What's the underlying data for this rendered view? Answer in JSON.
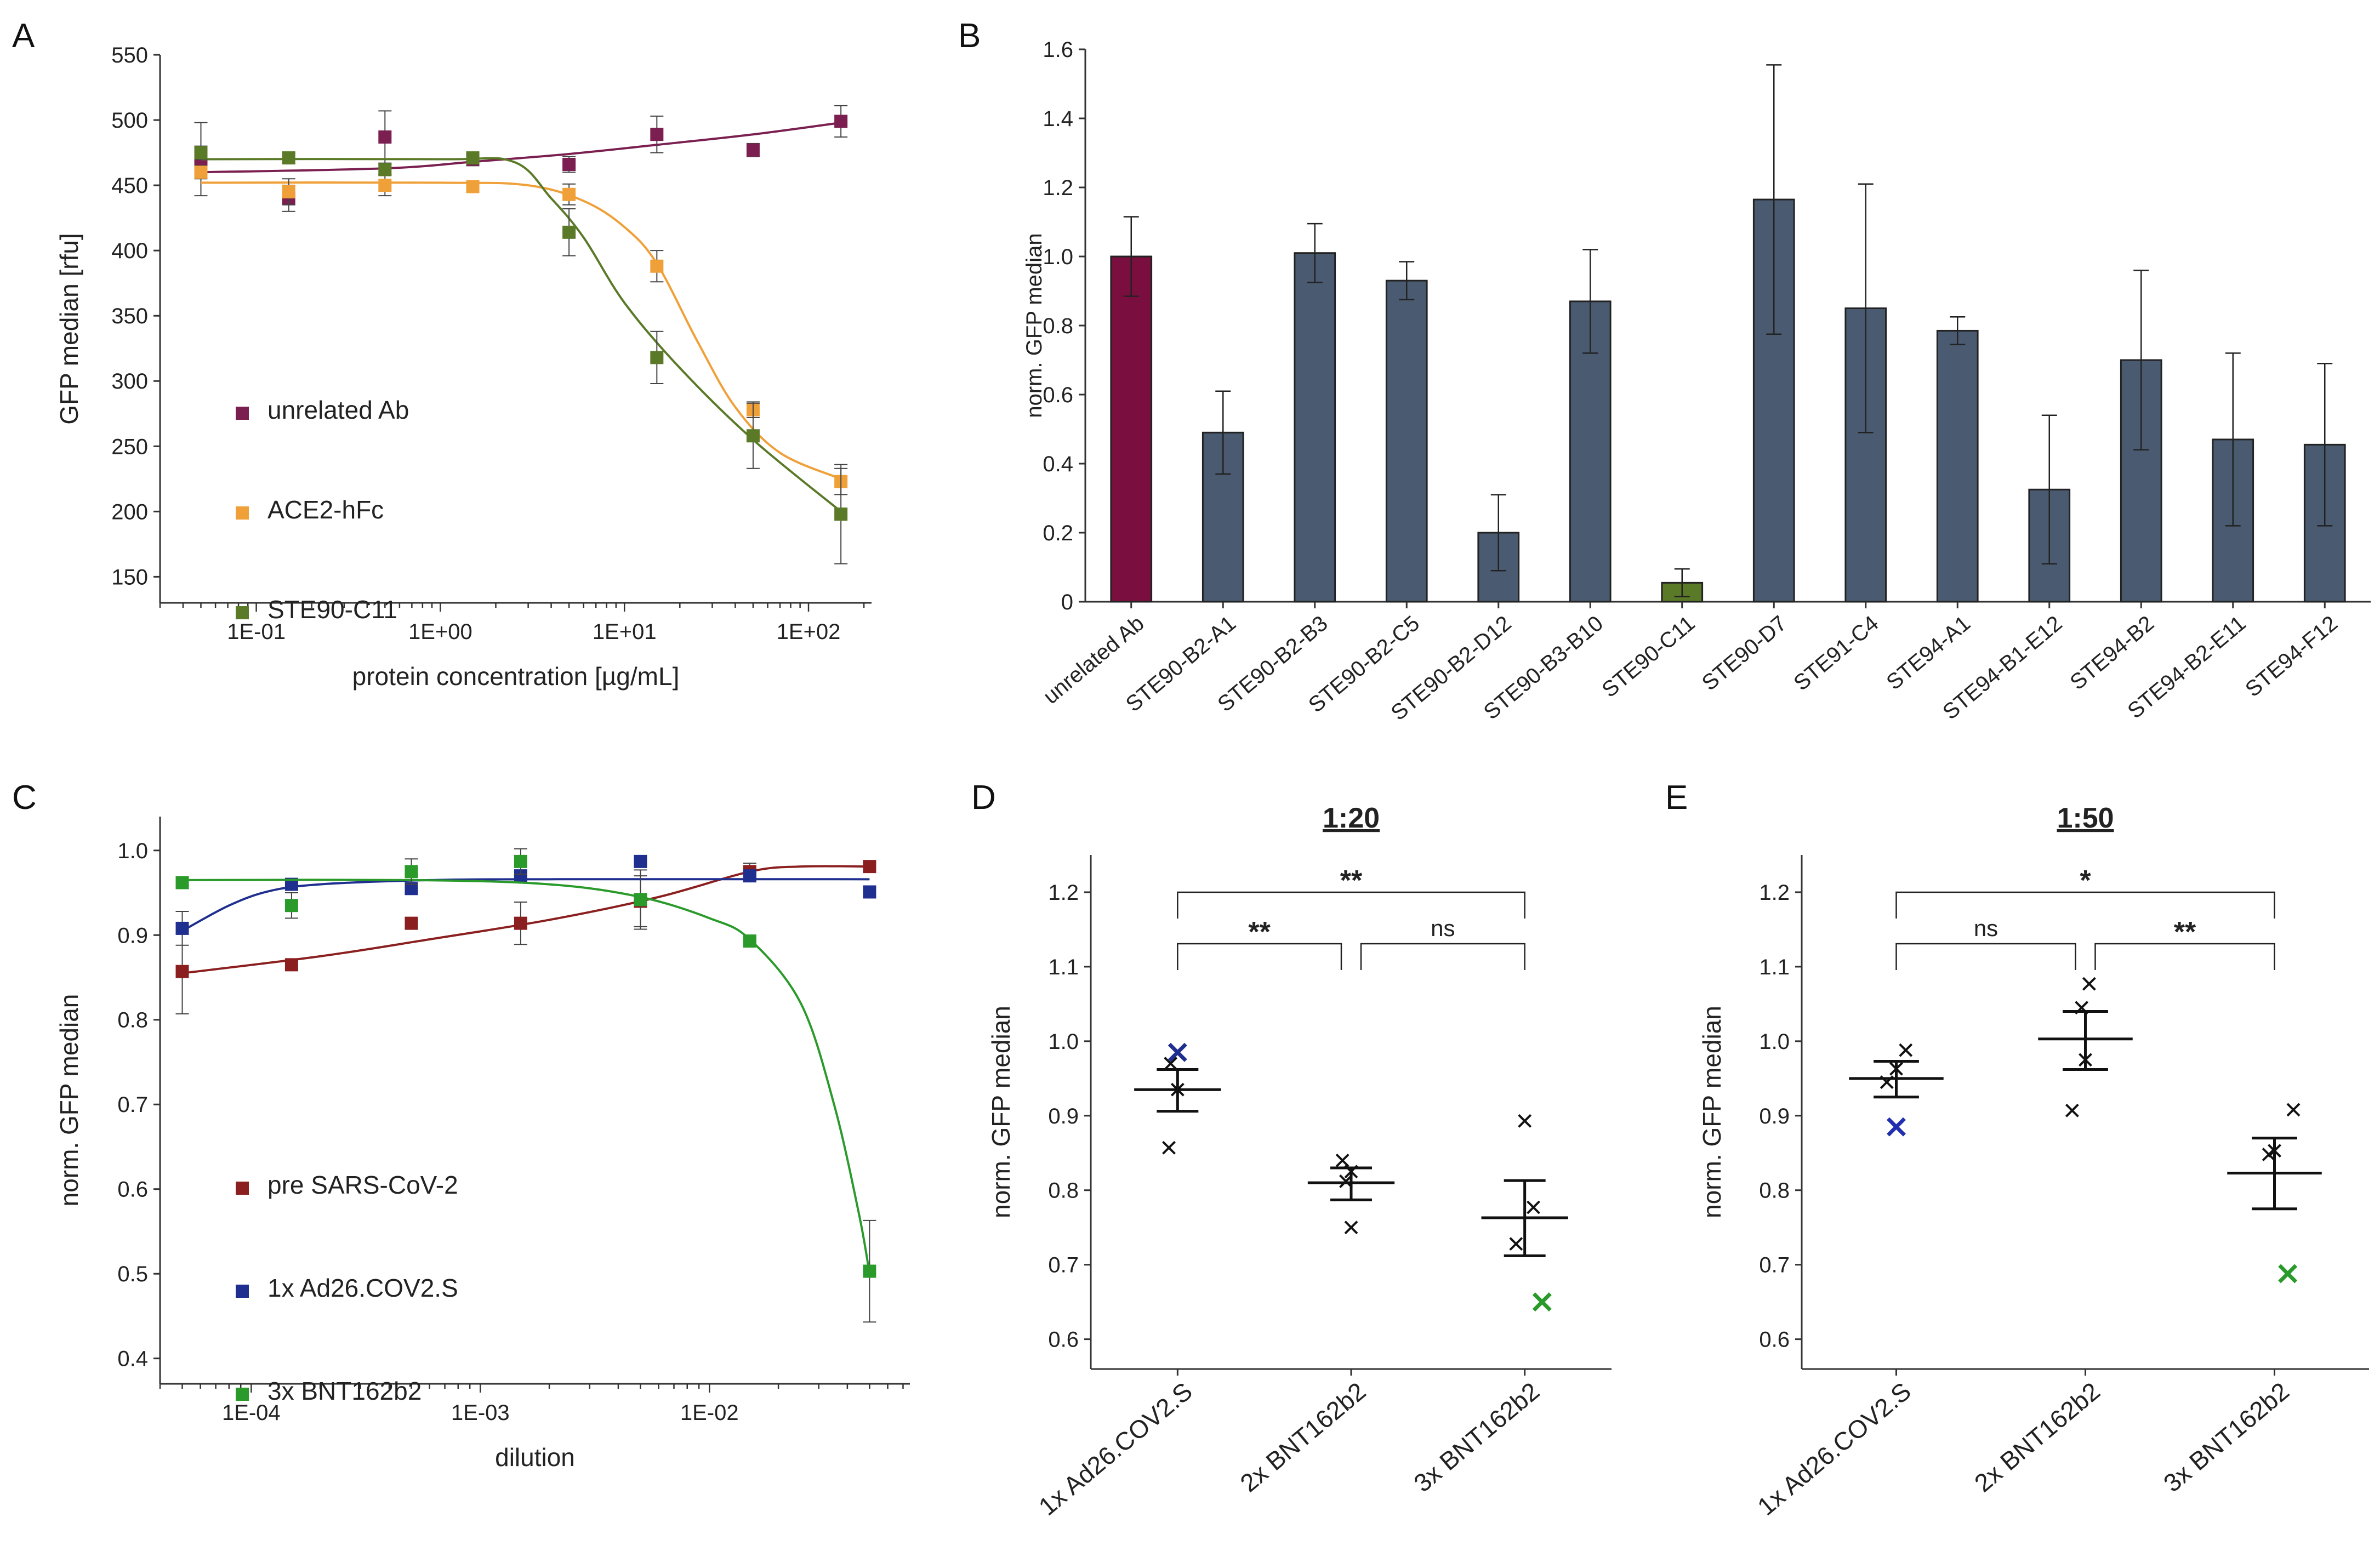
{
  "panels": {
    "A": "A",
    "B": "B",
    "C": "C",
    "D": "D",
    "E": "E"
  },
  "chart_data": [
    {
      "id": "A",
      "type": "scatter",
      "xscale": "log",
      "xlabel": "protein concentration [µg/mL]",
      "ylabel": "GFP median [rfu]",
      "xlim": [
        0.03,
        220
      ],
      "ylim": [
        130,
        550
      ],
      "yticks": [
        150,
        200,
        250,
        300,
        350,
        400,
        450,
        500,
        550
      ],
      "xticks": [
        {
          "v": 0.1,
          "label": "1E-01"
        },
        {
          "v": 1,
          "label": "1E+00"
        },
        {
          "v": 10,
          "label": "1E+01"
        },
        {
          "v": 100,
          "label": "1E+02"
        }
      ],
      "legend_position": "lower-left",
      "series": [
        {
          "name": "unrelated Ab",
          "color": "#7a1f4f",
          "x": [
            0.05,
            0.15,
            0.5,
            1.5,
            5,
            15,
            50,
            150
          ],
          "y": [
            470,
            440,
            487,
            470,
            466,
            489,
            477,
            499
          ],
          "err": [
            28,
            10,
            20,
            5,
            6,
            14,
            5,
            12
          ],
          "curve": [
            [
              0.05,
              460
            ],
            [
              0.5,
              463
            ],
            [
              1.5,
              468
            ],
            [
              5,
              474
            ],
            [
              15,
              481
            ],
            [
              50,
              489
            ],
            [
              150,
              498
            ]
          ]
        },
        {
          "name": "ACE2-hFc",
          "color": "#f0a038",
          "x": [
            0.05,
            0.15,
            0.5,
            1.5,
            5,
            15,
            50,
            150
          ],
          "y": [
            460,
            445,
            450,
            449,
            443,
            388,
            278,
            223
          ],
          "err": [
            5,
            10,
            8,
            4,
            8,
            12,
            6,
            10
          ],
          "curve": [
            [
              0.05,
              452
            ],
            [
              1,
              452
            ],
            [
              3,
              450
            ],
            [
              6,
              438
            ],
            [
              10,
              418
            ],
            [
              15,
              390
            ],
            [
              25,
              330
            ],
            [
              40,
              280
            ],
            [
              70,
              245
            ],
            [
              150,
              225
            ]
          ]
        },
        {
          "name": "STE90-C11",
          "color": "#5a7a28",
          "x": [
            0.05,
            0.15,
            0.5,
            1.5,
            5,
            15,
            50,
            150
          ],
          "y": [
            475,
            471,
            462,
            471,
            414,
            318,
            258,
            198
          ],
          "err": [
            5,
            4,
            4,
            3,
            18,
            20,
            25,
            38
          ],
          "curve": [
            [
              0.05,
              470
            ],
            [
              1,
              470
            ],
            [
              2.5,
              468
            ],
            [
              4,
              440
            ],
            [
              6,
              410
            ],
            [
              10,
              360
            ],
            [
              20,
              310
            ],
            [
              50,
              255
            ],
            [
              150,
              200
            ]
          ]
        }
      ]
    },
    {
      "id": "B",
      "type": "bar",
      "ylabel": "norm. GFP median",
      "ylim": [
        0,
        1.6
      ],
      "yticks": [
        0,
        0.2,
        0.4,
        0.6,
        0.8,
        1.0,
        1.2,
        1.4,
        1.6
      ],
      "ytick_labels": [
        "0",
        "0.2",
        "0.4",
        "0.6",
        "0.8",
        "1.0",
        "1.2",
        "1.4",
        "1.6"
      ],
      "categories": [
        "unrelated Ab",
        "STE90-B2-A1",
        "STE90-B2-B3",
        "STE90-B2-C5",
        "STE90-B2-D12",
        "STE90-B3-B10",
        "STE90-C11",
        "STE90-D7",
        "STE91-C4",
        "STE94-A1",
        "STE94-B1-E12",
        "STE94-B2",
        "STE94-B2-E11",
        "STE94-F12"
      ],
      "values": [
        1.0,
        0.49,
        1.01,
        0.93,
        0.2,
        0.87,
        0.055,
        1.165,
        0.85,
        0.785,
        0.325,
        0.7,
        0.47,
        0.455
      ],
      "err": [
        0.115,
        0.12,
        0.085,
        0.055,
        0.11,
        0.15,
        0.04,
        0.39,
        0.36,
        0.04,
        0.215,
        0.26,
        0.25,
        0.235
      ],
      "colors": [
        "#7a0f3f",
        "#4a5a70",
        "#4a5a70",
        "#4a5a70",
        "#4a5a70",
        "#4a5a70",
        "#5a7a28",
        "#4a5a70",
        "#4a5a70",
        "#4a5a70",
        "#4a5a70",
        "#4a5a70",
        "#4a5a70",
        "#4a5a70"
      ]
    },
    {
      "id": "C",
      "type": "scatter",
      "xscale": "log",
      "xlabel": "dilution",
      "ylabel": "norm. GFP median",
      "xlim": [
        4e-05,
        0.075
      ],
      "ylim": [
        0.37,
        1.04
      ],
      "yticks": [
        0.4,
        0.5,
        0.6,
        0.7,
        0.8,
        0.9,
        1.0
      ],
      "ytick_labels": [
        "0.4",
        "0.5",
        "0.6",
        "0.7",
        "0.8",
        "0.9",
        "1.0"
      ],
      "xticks": [
        {
          "v": 0.0001,
          "label": "1E-04"
        },
        {
          "v": 0.001,
          "label": "1E-03"
        },
        {
          "v": 0.01,
          "label": "1E-02"
        }
      ],
      "legend_position": "lower-left",
      "series": [
        {
          "name": "pre SARS-CoV-2",
          "color": "#8b1f1f",
          "x": [
            5e-05,
            0.00015,
            0.0005,
            0.0015,
            0.005,
            0.015,
            0.05
          ],
          "y": [
            0.857,
            0.865,
            0.914,
            0.914,
            0.94,
            0.975,
            0.981
          ],
          "err": [
            0.05,
            0.005,
            0.005,
            0.025,
            0.03,
            0.01,
            0.005
          ],
          "curve": [
            [
              5e-05,
              0.855
            ],
            [
              0.0002,
              0.875
            ],
            [
              0.0006,
              0.895
            ],
            [
              0.002,
              0.918
            ],
            [
              0.006,
              0.945
            ],
            [
              0.015,
              0.975
            ],
            [
              0.025,
              0.981
            ],
            [
              0.05,
              0.981
            ]
          ]
        },
        {
          "name": "1x Ad26.COV2.S",
          "color": "#1f2f8f",
          "x": [
            5e-05,
            0.00015,
            0.0005,
            0.0015,
            0.005,
            0.015,
            0.05
          ],
          "y": [
            0.908,
            0.96,
            0.955,
            0.97,
            0.987,
            0.97,
            0.951
          ],
          "err": [
            0.02,
            0.005,
            0.005,
            0.005,
            0.003,
            0.005,
            0.005
          ],
          "curve": [
            [
              5e-05,
              0.905
            ],
            [
              8e-05,
              0.935
            ],
            [
              0.00012,
              0.952
            ],
            [
              0.0002,
              0.96
            ],
            [
              0.0006,
              0.965
            ],
            [
              0.002,
              0.966
            ],
            [
              0.05,
              0.966
            ]
          ]
        },
        {
          "name": "3x BNT162b2",
          "color": "#2a9a2a",
          "x": [
            5e-05,
            0.00015,
            0.0005,
            0.0015,
            0.005,
            0.015,
            0.05
          ],
          "y": [
            0.962,
            0.935,
            0.975,
            0.987,
            0.942,
            0.893,
            0.503
          ],
          "err": [
            0.005,
            0.015,
            0.015,
            0.015,
            0.035,
            0.005,
            0.06
          ],
          "curve": [
            [
              5e-05,
              0.965
            ],
            [
              0.0005,
              0.965
            ],
            [
              0.002,
              0.96
            ],
            [
              0.005,
              0.945
            ],
            [
              0.01,
              0.92
            ],
            [
              0.015,
              0.895
            ],
            [
              0.025,
              0.82
            ],
            [
              0.035,
              0.7
            ],
            [
              0.045,
              0.57
            ],
            [
              0.05,
              0.5
            ]
          ]
        }
      ]
    },
    {
      "id": "D",
      "type": "scatter",
      "title": "1:20",
      "ylabel": "norm. GFP median",
      "ylim": [
        0.56,
        1.25
      ],
      "yticks": [
        0.6,
        0.7,
        0.8,
        0.9,
        1.0,
        1.1,
        1.2
      ],
      "ytick_labels": [
        "0.6",
        "0.7",
        "0.8",
        "0.9",
        "1.0",
        "1.1",
        "1.2"
      ],
      "categories": [
        "1x Ad26.COV2.S",
        "2x BNT162b2",
        "3x BNT162b2"
      ],
      "groups": [
        {
          "mean": 0.935,
          "sem_lo": 0.906,
          "sem_hi": 0.962,
          "points": [
            [
              0.0,
              0.985,
              "#1f2f8f"
            ],
            [
              -0.04,
              0.97,
              "#111111"
            ],
            [
              0.0,
              0.935,
              "#111111"
            ],
            [
              -0.05,
              0.857,
              "#111111"
            ]
          ]
        },
        {
          "mean": 0.81,
          "sem_lo": 0.787,
          "sem_hi": 0.83,
          "points": [
            [
              -0.05,
              0.84,
              "#111111"
            ],
            [
              0.0,
              0.825,
              "#111111"
            ],
            [
              -0.03,
              0.812,
              "#111111"
            ],
            [
              0.0,
              0.75,
              "#111111"
            ]
          ]
        },
        {
          "mean": 0.763,
          "sem_lo": 0.712,
          "sem_hi": 0.813,
          "points": [
            [
              0.0,
              0.893,
              "#111111"
            ],
            [
              0.05,
              0.777,
              "#111111"
            ],
            [
              -0.05,
              0.728,
              "#111111"
            ],
            [
              0.1,
              0.65,
              "#2a9a2a"
            ]
          ]
        }
      ],
      "brackets": [
        {
          "from": 0,
          "to": 1,
          "level": 0,
          "label": "**"
        },
        {
          "from": 1,
          "to": 2,
          "level": 0,
          "label": "ns"
        },
        {
          "from": 0,
          "to": 2,
          "level": 1,
          "label": "**"
        }
      ]
    },
    {
      "id": "E",
      "type": "scatter",
      "title": "1:50",
      "ylabel": "norm. GFP median",
      "ylim": [
        0.56,
        1.25
      ],
      "yticks": [
        0.6,
        0.7,
        0.8,
        0.9,
        1.0,
        1.1,
        1.2
      ],
      "ytick_labels": [
        "0.6",
        "0.7",
        "0.8",
        "0.9",
        "1.0",
        "1.1",
        "1.2"
      ],
      "categories": [
        "1x Ad26.COV2.S",
        "2x BNT162b2",
        "3x BNT162b2"
      ],
      "groups": [
        {
          "mean": 0.95,
          "sem_lo": 0.925,
          "sem_hi": 0.973,
          "points": [
            [
              0.05,
              0.988,
              "#111111"
            ],
            [
              0.0,
              0.963,
              "#111111"
            ],
            [
              -0.05,
              0.945,
              "#111111"
            ],
            [
              0.0,
              0.885,
              "#1f2faf"
            ]
          ]
        },
        {
          "mean": 1.003,
          "sem_lo": 0.962,
          "sem_hi": 1.04,
          "points": [
            [
              0.02,
              1.077,
              "#111111"
            ],
            [
              -0.02,
              1.045,
              "#111111"
            ],
            [
              0.0,
              0.975,
              "#111111"
            ],
            [
              -0.07,
              0.907,
              "#111111"
            ]
          ]
        },
        {
          "mean": 0.823,
          "sem_lo": 0.775,
          "sem_hi": 0.87,
          "points": [
            [
              0.1,
              0.908,
              "#111111"
            ],
            [
              0.0,
              0.853,
              "#111111"
            ],
            [
              -0.03,
              0.848,
              "#111111"
            ],
            [
              0.07,
              0.688,
              "#2a9a2a"
            ]
          ]
        }
      ],
      "brackets": [
        {
          "from": 0,
          "to": 1,
          "level": 0,
          "label": "ns"
        },
        {
          "from": 1,
          "to": 2,
          "level": 0,
          "label": "**"
        },
        {
          "from": 0,
          "to": 2,
          "level": 1,
          "label": "*"
        }
      ]
    }
  ]
}
